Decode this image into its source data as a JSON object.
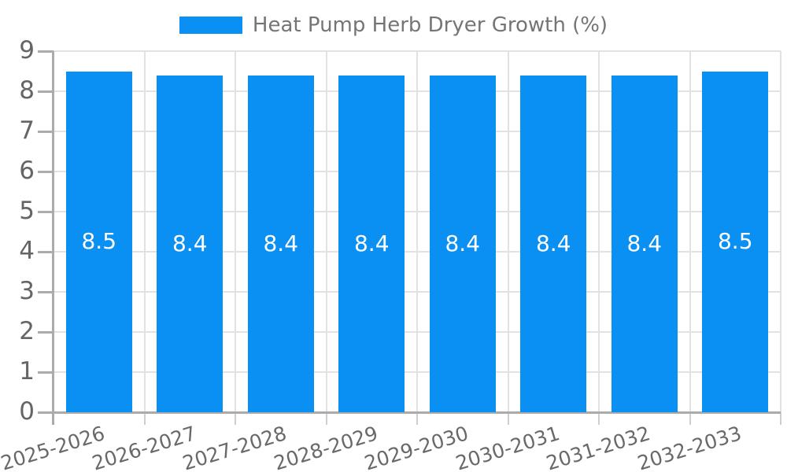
{
  "legend": {
    "label": "Heat Pump Herb Dryer Growth (%)"
  },
  "colors": {
    "bar": "#0a8ff2",
    "grid_light": "#e2e2e2",
    "axis_gray": "#ababab",
    "bottom_tick": "#cfcfcf",
    "y_tick_label": "#656565",
    "x_tick_label": "#696969",
    "legend_text": "#757575",
    "bar_label": "#ffffff",
    "background": "#ffffff"
  },
  "chart_data": {
    "type": "bar",
    "title": "Heat Pump Herb Dryer Growth (%)",
    "categories": [
      "2025-2026",
      "2026-2027",
      "2027-2028",
      "2028-2029",
      "2029-2030",
      "2030-2031",
      "2031-2032",
      "2032-2033"
    ],
    "series": [
      {
        "name": "Heat Pump Herb Dryer Growth (%)",
        "values": [
          8.5,
          8.4,
          8.4,
          8.4,
          8.4,
          8.4,
          8.4,
          8.5
        ]
      }
    ],
    "bar_labels": [
      "8.5",
      "8.4",
      "8.4",
      "8.4",
      "8.4",
      "8.4",
      "8.4",
      "8.5"
    ],
    "bar_label_position": "middle-of-bar",
    "xlabel": "",
    "ylabel": "",
    "ylim": [
      0,
      9
    ],
    "yticks": [
      0,
      1,
      2,
      3,
      4,
      5,
      6,
      7,
      8,
      9
    ],
    "grid": true,
    "legend_position": "top-center"
  }
}
